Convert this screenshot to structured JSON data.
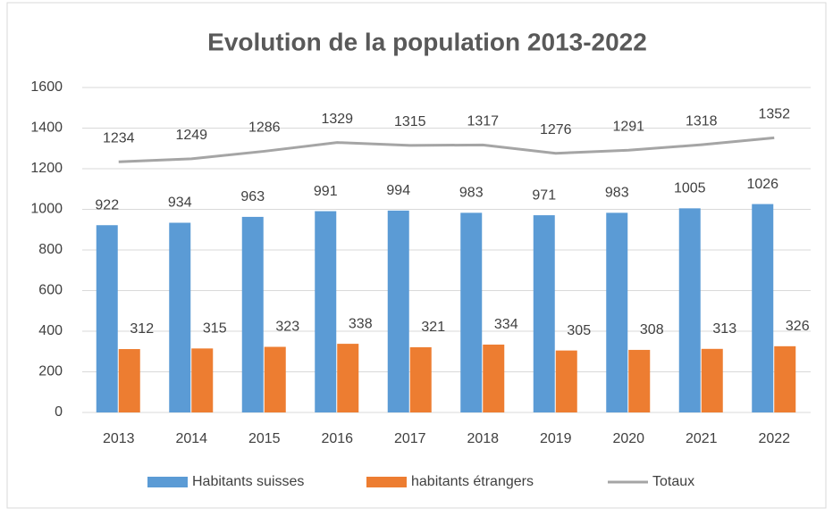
{
  "chart_data": {
    "type": "bar",
    "title": "Evolution de la population 2013-2022",
    "categories": [
      "2013",
      "2014",
      "2015",
      "2016",
      "2017",
      "2018",
      "2019",
      "2020",
      "2021",
      "2022"
    ],
    "series": [
      {
        "name": "Habitants suisses",
        "color": "#5b9bd5",
        "values": [
          922,
          934,
          963,
          991,
          994,
          983,
          971,
          983,
          1005,
          1026
        ]
      },
      {
        "name": "habitants étrangers",
        "color": "#ed7d31",
        "values": [
          312,
          315,
          323,
          338,
          321,
          334,
          305,
          308,
          313,
          326
        ]
      },
      {
        "name": "Totaux",
        "color": "#a5a5a5",
        "type": "line",
        "values": [
          1234,
          1249,
          1286,
          1329,
          1315,
          1317,
          1276,
          1291,
          1318,
          1352
        ]
      }
    ],
    "ylim": [
      0,
      1600
    ],
    "yticks": [
      0,
      200,
      400,
      600,
      800,
      1000,
      1200,
      1400,
      1600
    ],
    "grid": true,
    "legend": "bottom"
  }
}
